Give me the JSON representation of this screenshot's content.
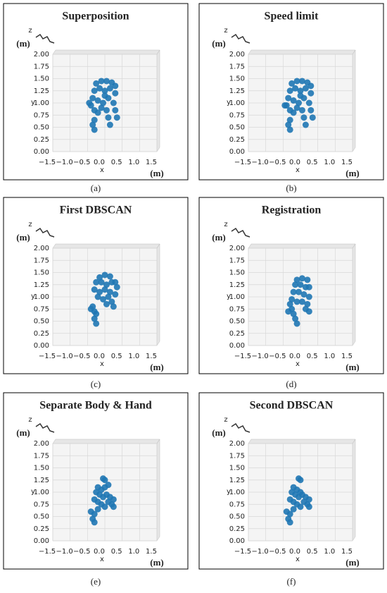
{
  "chart_data": [
    {
      "type": "scatter",
      "title": "Superposition",
      "caption": "(a)",
      "xlabel": "x",
      "ylabel": "y",
      "zlabel": "z",
      "xunit": "(m)",
      "yunit": "(m)",
      "color": "#1f77b4",
      "x": [
        -0.25,
        -0.1,
        0.05,
        0.2,
        0.3,
        -0.3,
        -0.15,
        0,
        0.15,
        0.3,
        -0.35,
        -0.2,
        -0.05,
        0.1,
        0.25,
        -0.4,
        -0.3,
        -0.2,
        -0.3,
        -0.35,
        -0.3,
        0.05,
        0.1,
        0.15,
        0.3,
        0.35,
        -0.45,
        0.0,
        -0.1
      ],
      "y": [
        1.4,
        1.45,
        1.45,
        1.42,
        1.35,
        1.25,
        1.3,
        1.25,
        1.3,
        1.2,
        1.1,
        1.05,
        1.0,
        1.1,
        1.0,
        0.95,
        0.85,
        0.8,
        0.65,
        0.55,
        0.45,
        0.85,
        0.7,
        0.55,
        0.85,
        0.7,
        1.0,
        1.15,
        0.9
      ],
      "xlim": [
        -1.5,
        1.5
      ],
      "ylim": [
        0,
        2
      ],
      "xticks": [
        {
          "value": -1.5,
          "label": "−1.5"
        },
        {
          "value": -1,
          "label": "−1.0"
        },
        {
          "value": -0.5,
          "label": "−0.5"
        },
        {
          "value": 0,
          "label": "0.0"
        },
        0.5,
        {
          "value": 1,
          "label": "1.0"
        },
        1.5
      ],
      "yticks": [
        {
          "value": 0,
          "label": "0.00"
        },
        0.25,
        {
          "value": 0.5,
          "label": "0.50"
        },
        0.75,
        {
          "value": 1,
          "label": "1.00"
        },
        1.25,
        {
          "value": 1.5,
          "label": "1.50"
        },
        1.75,
        {
          "value": 2,
          "label": "2.00"
        }
      ]
    },
    {
      "type": "scatter",
      "title": "Speed limit",
      "caption": "(b)",
      "xlabel": "x",
      "ylabel": "y",
      "zlabel": "z",
      "xunit": "(m)",
      "yunit": "(m)",
      "color": "#1f77b4",
      "x": [
        -0.25,
        -0.1,
        0.05,
        0.2,
        0.3,
        -0.3,
        -0.15,
        0,
        0.15,
        0.3,
        -0.35,
        -0.2,
        -0.05,
        0.1,
        0.25,
        -0.4,
        -0.3,
        -0.2,
        -0.3,
        -0.35,
        -0.3,
        0.05,
        0.1,
        0.15,
        0.3,
        0.35,
        -0.45,
        0.0,
        -0.1
      ],
      "y": [
        1.4,
        1.45,
        1.45,
        1.42,
        1.35,
        1.25,
        1.3,
        1.25,
        1.3,
        1.2,
        1.1,
        1.05,
        1.0,
        1.1,
        1.0,
        0.95,
        0.85,
        0.8,
        0.65,
        0.55,
        0.45,
        0.85,
        0.7,
        0.55,
        0.85,
        0.7,
        0.95,
        1.15,
        0.9
      ],
      "xlim": [
        -1.5,
        1.5
      ],
      "ylim": [
        0,
        2
      ],
      "xticks": [
        {
          "value": -1.5,
          "label": "−1.5"
        },
        {
          "value": -1,
          "label": "−1.0"
        },
        {
          "value": -0.5,
          "label": "−0.5"
        },
        {
          "value": 0,
          "label": "0.0"
        },
        0.5,
        {
          "value": 1,
          "label": "1.0"
        },
        1.5
      ],
      "yticks": [
        {
          "value": 0,
          "label": "0.00"
        },
        0.25,
        {
          "value": 0.5,
          "label": "0.50"
        },
        0.75,
        {
          "value": 1,
          "label": "1.00"
        },
        1.25,
        {
          "value": 1.5,
          "label": "1.50"
        },
        1.75,
        {
          "value": 2,
          "label": "2.00"
        }
      ]
    },
    {
      "type": "scatter",
      "title": "First DBSCAN",
      "caption": "(c)",
      "xlabel": "x",
      "ylabel": "y",
      "zlabel": "z",
      "xunit": "(m)",
      "yunit": "(m)",
      "color": "#1f77b4",
      "x": [
        -0.15,
        0.0,
        0.15,
        0.3,
        -0.25,
        -0.1,
        0.05,
        0.2,
        0.35,
        -0.3,
        -0.15,
        0.0,
        0.15,
        0.3,
        -0.2,
        -0.05,
        0.1,
        -0.35,
        -0.3,
        -0.25,
        -0.3,
        -0.25,
        0.2,
        0.25,
        -0.4,
        0.05
      ],
      "y": [
        1.4,
        1.45,
        1.42,
        1.3,
        1.3,
        1.3,
        1.25,
        1.3,
        1.2,
        1.15,
        1.1,
        1.15,
        1.1,
        1.05,
        1.0,
        0.95,
        1.0,
        0.8,
        0.7,
        0.65,
        0.55,
        0.45,
        0.9,
        0.8,
        0.75,
        0.85
      ],
      "xlim": [
        -1.5,
        1.5
      ],
      "ylim": [
        0,
        2
      ],
      "xticks": [
        {
          "value": -1.5,
          "label": "−1.5"
        },
        {
          "value": -1,
          "label": "−1.0"
        },
        {
          "value": -0.5,
          "label": "−0.5"
        },
        {
          "value": 0,
          "label": "0.0"
        },
        0.5,
        {
          "value": 1,
          "label": "1.0"
        },
        1.5
      ],
      "yticks": [
        {
          "value": 0,
          "label": "0.00"
        },
        0.25,
        {
          "value": 0.5,
          "label": "0.50"
        },
        0.75,
        {
          "value": 1,
          "label": "1.00"
        },
        1.25,
        {
          "value": 1.5,
          "label": "1.50"
        },
        1.75,
        {
          "value": 2,
          "label": "2.00"
        }
      ]
    },
    {
      "type": "scatter",
      "title": "Registration",
      "caption": "(d)",
      "xlabel": "x",
      "ylabel": "y",
      "zlabel": "z",
      "xunit": "(m)",
      "yunit": "(m)",
      "color": "#1f77b4",
      "x": [
        -0.1,
        0.05,
        0.2,
        -0.15,
        0.0,
        0.15,
        0.25,
        -0.2,
        -0.05,
        0.1,
        0.25,
        -0.25,
        -0.1,
        0.05,
        0.2,
        -0.3,
        -0.25,
        -0.2,
        -0.15,
        -0.1,
        0.15,
        0.25,
        -0.35
      ],
      "y": [
        1.35,
        1.38,
        1.35,
        1.25,
        1.25,
        1.2,
        1.2,
        1.1,
        1.1,
        1.05,
        1.0,
        0.95,
        0.9,
        0.9,
        0.85,
        0.85,
        0.75,
        0.65,
        0.55,
        0.45,
        0.75,
        0.7,
        0.7
      ],
      "xlim": [
        -1.5,
        1.5
      ],
      "ylim": [
        0,
        2
      ],
      "xticks": [
        {
          "value": -1.5,
          "label": "−1.5"
        },
        {
          "value": -1,
          "label": "−1.0"
        },
        {
          "value": -0.5,
          "label": "−0.5"
        },
        {
          "value": 0,
          "label": "0.0"
        },
        0.5,
        {
          "value": 1,
          "label": "1.0"
        },
        1.5
      ],
      "yticks": [
        {
          "value": 0,
          "label": "0.00"
        },
        0.25,
        {
          "value": 0.5,
          "label": "0.50"
        },
        0.75,
        {
          "value": 1,
          "label": "1.00"
        },
        1.25,
        {
          "value": 1.5,
          "label": "1.50"
        },
        1.75,
        {
          "value": 2,
          "label": "2.00"
        }
      ]
    },
    {
      "type": "scatter",
      "title": "Separate Body & Hand",
      "caption": "(e)",
      "xlabel": "x",
      "ylabel": "y",
      "zlabel": "z",
      "xunit": "(m)",
      "yunit": "(m)",
      "color": "#1f77b4",
      "x": [
        -0.05,
        0.0,
        0.1,
        -0.2,
        -0.1,
        0.0,
        -0.25,
        -0.15,
        -0.05,
        0.05,
        0.15,
        0.25,
        -0.3,
        -0.2,
        -0.1,
        0.0,
        0.1,
        0.2,
        -0.4,
        -0.3,
        -0.35,
        -0.3,
        -0.2,
        0.25
      ],
      "y": [
        1.28,
        1.25,
        1.15,
        1.1,
        1.05,
        1.1,
        1.0,
        0.95,
        0.9,
        0.95,
        0.9,
        0.85,
        0.85,
        0.8,
        0.75,
        0.7,
        0.8,
        0.75,
        0.6,
        0.55,
        0.45,
        0.38,
        0.65,
        0.7
      ],
      "xlim": [
        -1.5,
        1.5
      ],
      "ylim": [
        0,
        2
      ],
      "xticks": [
        {
          "value": -1.5,
          "label": "−1.5"
        },
        {
          "value": -1,
          "label": "−1.0"
        },
        {
          "value": -0.5,
          "label": "−0.5"
        },
        {
          "value": 0,
          "label": "0.0"
        },
        0.5,
        {
          "value": 1,
          "label": "1.0"
        },
        1.5
      ],
      "yticks": [
        {
          "value": 0,
          "label": "0.00"
        },
        0.25,
        {
          "value": 0.5,
          "label": "0.50"
        },
        0.75,
        {
          "value": 1,
          "label": "1.00"
        },
        1.25,
        {
          "value": 1.5,
          "label": "1.50"
        },
        1.75,
        {
          "value": 2,
          "label": "2.00"
        }
      ]
    },
    {
      "type": "scatter",
      "title": "Second DBSCAN",
      "caption": "(f)",
      "xlabel": "x",
      "ylabel": "y",
      "zlabel": "z",
      "xunit": "(m)",
      "yunit": "(m)",
      "color": "#1f77b4",
      "x": [
        -0.05,
        0.0,
        -0.2,
        -0.1,
        0.0,
        -0.25,
        -0.15,
        -0.05,
        0.05,
        0.15,
        0.25,
        -0.3,
        -0.2,
        -0.1,
        0.0,
        0.1,
        0.2,
        -0.4,
        -0.3,
        -0.35,
        -0.3,
        -0.2,
        0.25
      ],
      "y": [
        1.28,
        1.25,
        1.1,
        1.05,
        1.0,
        1.0,
        0.95,
        0.9,
        0.95,
        0.9,
        0.85,
        0.85,
        0.8,
        0.75,
        0.7,
        0.8,
        0.75,
        0.6,
        0.55,
        0.45,
        0.38,
        0.65,
        0.7
      ],
      "xlim": [
        -1.5,
        1.5
      ],
      "ylim": [
        0,
        2
      ],
      "xticks": [
        {
          "value": -1.5,
          "label": "−1.5"
        },
        {
          "value": -1,
          "label": "−1.0"
        },
        {
          "value": -0.5,
          "label": "−0.5"
        },
        {
          "value": 0,
          "label": "0.0"
        },
        0.5,
        {
          "value": 1,
          "label": "1.0"
        },
        1.5
      ],
      "yticks": [
        {
          "value": 0,
          "label": "0.00"
        },
        0.25,
        {
          "value": 0.5,
          "label": "0.50"
        },
        0.75,
        {
          "value": 1,
          "label": "1.00"
        },
        1.25,
        {
          "value": 1.5,
          "label": "1.50"
        },
        1.75,
        {
          "value": 2,
          "label": "2.00"
        }
      ]
    }
  ]
}
